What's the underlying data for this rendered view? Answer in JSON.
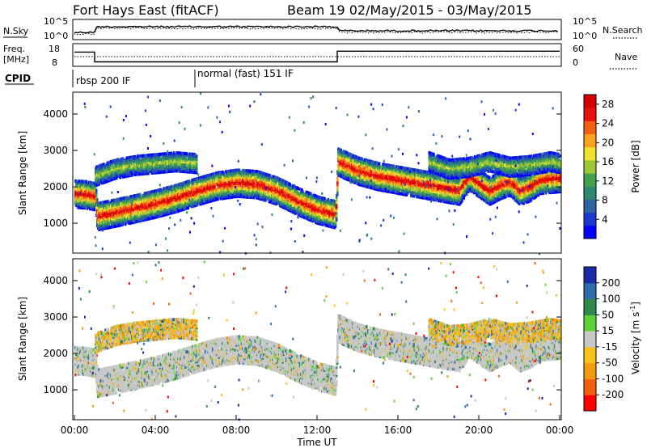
{
  "header": {
    "title": "Fort Hays East (fitACF)",
    "beam_info": "Beam 19 02/May/2015 - 03/May/2015"
  },
  "chart_data": [
    {
      "type": "line",
      "panel": "nsky",
      "ylabel": "N.Sky",
      "right_label": "N.Search",
      "left_ticks": [
        "10^5",
        "10^0"
      ],
      "right_ticks": [
        "10^5",
        "10^0"
      ]
    },
    {
      "type": "line",
      "panel": "freq",
      "ylabel_line1": "Freq.",
      "ylabel_line2": "[MHz]",
      "right_label": "Nave",
      "left_ticks": [
        "18",
        "8"
      ],
      "right_ticks": [
        "60",
        "0"
      ],
      "freq_segments": [
        {
          "x": [
            0.0,
            1.0
          ],
          "value": 16
        },
        {
          "x": [
            1.0,
            13.0
          ],
          "value": 10.5
        },
        {
          "x": [
            13.0,
            24.0
          ],
          "value": 16.5
        }
      ]
    },
    {
      "type": "line",
      "panel": "cpid",
      "label": "CPID",
      "segments": [
        {
          "start": 0.0,
          "label": "rbsp 200 IF"
        },
        {
          "start": 6.0,
          "label": "normal (fast) 151 IF"
        }
      ]
    },
    {
      "type": "heatmap",
      "panel": "power",
      "ylabel": "Slant Range [km]",
      "yticks": [
        1000,
        2000,
        3000,
        4000
      ],
      "ylim": [
        180,
        4600
      ],
      "xlim": [
        0,
        24
      ],
      "colorbar_label": "Power [dB]",
      "colorbar_ticks": [
        4,
        8,
        12,
        16,
        20,
        24,
        28
      ],
      "colorbar_range": [
        0,
        30
      ],
      "colorbar_colors": [
        "#0000ff",
        "#1a3ad0",
        "#2f62a0",
        "#2e8a6e",
        "#40a24a",
        "#9dc83a",
        "#f0e030",
        "#fca020",
        "#f56010",
        "#e81010",
        "#d40000"
      ]
    },
    {
      "type": "heatmap",
      "panel": "velocity",
      "ylabel": "Slant Range [km]",
      "yticks": [
        1000,
        2000,
        3000,
        4000
      ],
      "ylim": [
        180,
        4600
      ],
      "xlim": [
        0,
        24
      ],
      "colorbar_label_main": "Velocity [m s",
      "colorbar_label_sup": "-1",
      "colorbar_label_end": "]",
      "colorbar_ticks": [
        "-200",
        "-100",
        "-50",
        "-15",
        "15",
        "50",
        "100",
        "200"
      ],
      "colorbar_colors": [
        "#ff0000",
        "#f56010",
        "#f39c12",
        "#f7c21b",
        "#c8c8c8",
        "#5bd23a",
        "#2d8a4a",
        "#2f6ca8",
        "#1a2aa8"
      ],
      "ground_scatter_color": "#c8c8c8"
    }
  ],
  "backscatter_tracks": [
    {
      "name": "main",
      "points": [
        [
          0.0,
          1820
        ],
        [
          0.5,
          1800
        ],
        [
          1.0,
          1750
        ],
        [
          1.1,
          1200
        ],
        [
          2.0,
          1300
        ],
        [
          3.0,
          1420
        ],
        [
          4.0,
          1550
        ],
        [
          5.0,
          1700
        ],
        [
          6.0,
          1880
        ],
        [
          7.0,
          2040
        ],
        [
          8.0,
          2120
        ],
        [
          9.0,
          2080
        ],
        [
          10.0,
          1900
        ],
        [
          11.0,
          1620
        ],
        [
          12.0,
          1380
        ],
        [
          12.9,
          1250
        ],
        [
          13.0,
          2700
        ],
        [
          14.0,
          2450
        ],
        [
          15.0,
          2300
        ],
        [
          16.0,
          2200
        ],
        [
          17.0,
          2100
        ],
        [
          18.0,
          2000
        ],
        [
          19.0,
          1900
        ],
        [
          19.5,
          2300
        ],
        [
          20.0,
          2100
        ],
        [
          20.5,
          1900
        ],
        [
          21.0,
          2050
        ],
        [
          21.5,
          2150
        ],
        [
          22.0,
          1900
        ],
        [
          22.5,
          2000
        ],
        [
          23.0,
          2200
        ],
        [
          24.0,
          2250
        ]
      ]
    },
    {
      "name": "upper",
      "points": [
        [
          1.0,
          2300
        ],
        [
          2.0,
          2500
        ],
        [
          3.0,
          2600
        ],
        [
          4.0,
          2650
        ],
        [
          5.0,
          2700
        ],
        [
          6.0,
          2650
        ]
      ]
    },
    {
      "name": "late",
      "points": [
        [
          17.5,
          2700
        ],
        [
          18.5,
          2500
        ],
        [
          19.5,
          2550
        ],
        [
          20.5,
          2700
        ],
        [
          21.5,
          2550
        ],
        [
          22.5,
          2600
        ],
        [
          23.5,
          2700
        ],
        [
          24.0,
          2650
        ]
      ]
    }
  ],
  "xaxis": {
    "ticks": [
      "00:00",
      "04:00",
      "08:00",
      "12:00",
      "16:00",
      "20:00",
      "00:00"
    ],
    "label": "Time UT"
  }
}
